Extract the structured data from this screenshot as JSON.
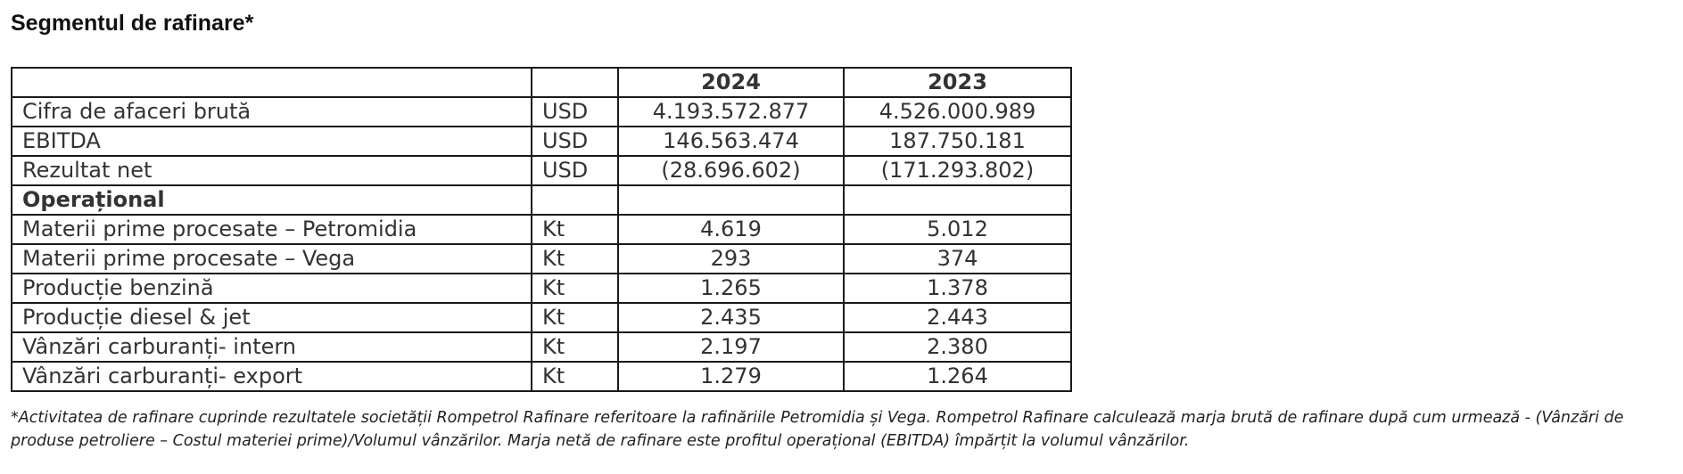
{
  "title": "Segmentul de rafinare*",
  "table": {
    "header": [
      "",
      "",
      "2024",
      "2023"
    ],
    "rows": [
      {
        "label": "Cifra de afaceri brută",
        "unit": "USD",
        "v2024": "4.193.572.877",
        "v2023": "4.526.000.989"
      },
      {
        "label": "EBITDA",
        "unit": "USD",
        "v2024": "146.563.474",
        "v2023": "187.750.181"
      },
      {
        "label": "Rezultat net",
        "unit": "USD",
        "v2024": "(28.696.602)",
        "v2023": "(171.293.802)"
      },
      {
        "label": "Operațional",
        "unit": "",
        "v2024": "",
        "v2023": ""
      },
      {
        "label": "Materii prime procesate – Petromidia",
        "unit": "Kt",
        "v2024": "4.619",
        "v2023": "5.012"
      },
      {
        "label": "Materii prime procesate – Vega",
        "unit": "Kt",
        "v2024": "293",
        "v2023": "374"
      },
      {
        "label": "Producție benzină",
        "unit": "Kt",
        "v2024": "1.265",
        "v2023": "1.378"
      },
      {
        "label": "Producție diesel & jet",
        "unit": "Kt",
        "v2024": "2.435",
        "v2023": "2.443"
      },
      {
        "label": "Vânzări carburanți- intern",
        "unit": "Kt",
        "v2024": "2.197",
        "v2023": "2.380"
      },
      {
        "label": "Vânzări carburanți- export",
        "unit": "Kt",
        "v2024": "1.279",
        "v2023": "1.264"
      }
    ]
  },
  "footnote": "*Activitatea de rafinare cuprinde rezultatele societății Rompetrol Rafinare referitoare la rafinăriile Petromidia și Vega. Rompetrol Rafinare calculează marja brută de rafinare după cum urmează -  (Vânzări de produse petroliere – Costul materiei prime)/Volumul vânzărilor. Marja netă de rafinare este profitul operațional (EBITDA) împărțit la volumul vânzărilor."
}
